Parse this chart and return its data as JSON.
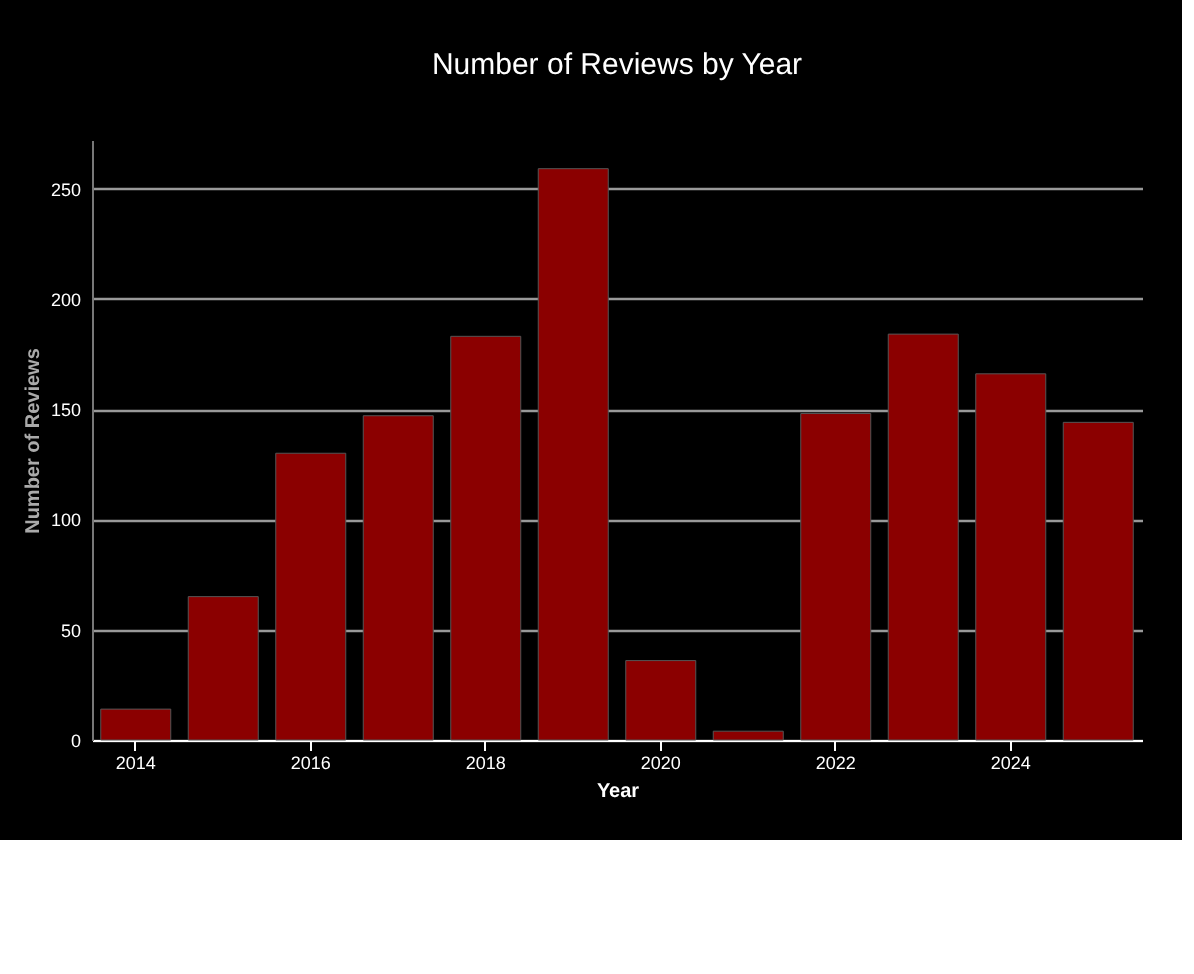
{
  "chart_data": {
    "type": "bar",
    "title": "Number of Reviews by Year",
    "xlabel": "Year",
    "ylabel": "Number of Reviews",
    "categories": [
      "2014",
      null,
      "2016",
      null,
      "2018",
      null,
      "2020",
      null,
      "2022",
      null,
      "2024",
      null
    ],
    "series": [
      {
        "color": "#8b0000",
        "values": [
          14,
          65,
          130,
          147,
          183,
          259,
          36,
          4,
          148,
          184,
          166,
          144
        ]
      }
    ],
    "ylim": [
      0,
      272
    ],
    "yticks": [
      0,
      50,
      100,
      150,
      200,
      250
    ],
    "grid": "y",
    "legend": false
  }
}
